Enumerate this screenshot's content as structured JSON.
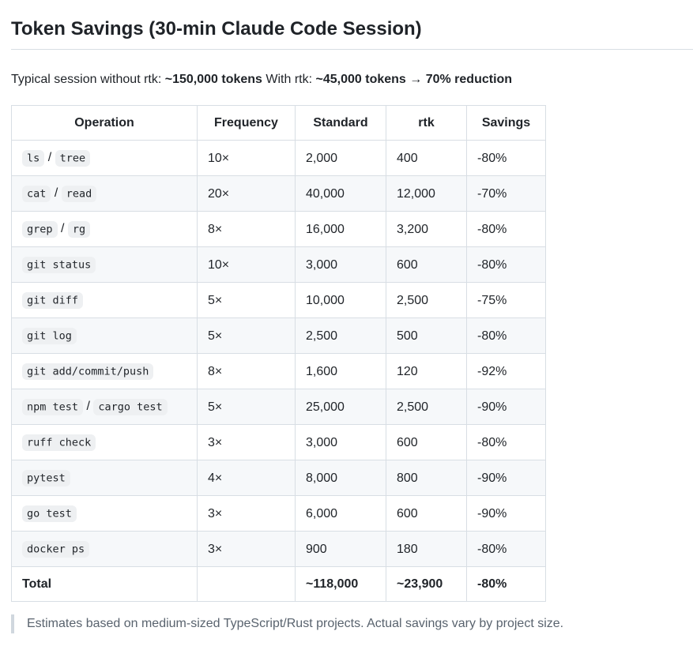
{
  "page": {
    "title": "Token Savings (30-min Claude Code Session)",
    "summary": {
      "prefix": "Typical session without rtk: ",
      "without_value": "~150,000 tokens",
      "middle": " With rtk: ",
      "with_value": "~45,000 tokens",
      "arrow": " → ",
      "reduction": "70% reduction"
    },
    "table": {
      "headers": [
        "Operation",
        "Frequency",
        "Standard",
        "rtk",
        "Savings"
      ],
      "rows": [
        {
          "op": [
            {
              "code": "ls"
            },
            {
              "text": " / "
            },
            {
              "code": "tree"
            }
          ],
          "frequency": "10×",
          "standard": "2,000",
          "rtk": "400",
          "savings": "-80%"
        },
        {
          "op": [
            {
              "code": "cat"
            },
            {
              "text": " / "
            },
            {
              "code": "read"
            }
          ],
          "frequency": "20×",
          "standard": "40,000",
          "rtk": "12,000",
          "savings": "-70%"
        },
        {
          "op": [
            {
              "code": "grep"
            },
            {
              "text": " / "
            },
            {
              "code": "rg"
            }
          ],
          "frequency": "8×",
          "standard": "16,000",
          "rtk": "3,200",
          "savings": "-80%"
        },
        {
          "op": [
            {
              "code": "git status"
            }
          ],
          "frequency": "10×",
          "standard": "3,000",
          "rtk": "600",
          "savings": "-80%"
        },
        {
          "op": [
            {
              "code": "git diff"
            }
          ],
          "frequency": "5×",
          "standard": "10,000",
          "rtk": "2,500",
          "savings": "-75%"
        },
        {
          "op": [
            {
              "code": "git log"
            }
          ],
          "frequency": "5×",
          "standard": "2,500",
          "rtk": "500",
          "savings": "-80%"
        },
        {
          "op": [
            {
              "code": "git add/commit/push"
            }
          ],
          "frequency": "8×",
          "standard": "1,600",
          "rtk": "120",
          "savings": "-92%"
        },
        {
          "op": [
            {
              "code": "npm test"
            },
            {
              "text": " / "
            },
            {
              "code": "cargo test"
            }
          ],
          "frequency": "5×",
          "standard": "25,000",
          "rtk": "2,500",
          "savings": "-90%"
        },
        {
          "op": [
            {
              "code": "ruff check"
            }
          ],
          "frequency": "3×",
          "standard": "3,000",
          "rtk": "600",
          "savings": "-80%"
        },
        {
          "op": [
            {
              "code": "pytest"
            }
          ],
          "frequency": "4×",
          "standard": "8,000",
          "rtk": "800",
          "savings": "-90%"
        },
        {
          "op": [
            {
              "code": "go test"
            }
          ],
          "frequency": "3×",
          "standard": "6,000",
          "rtk": "600",
          "savings": "-90%"
        },
        {
          "op": [
            {
              "code": "docker ps"
            }
          ],
          "frequency": "3×",
          "standard": "900",
          "rtk": "180",
          "savings": "-80%"
        }
      ],
      "total": {
        "label": "Total",
        "frequency": "",
        "standard": "~118,000",
        "rtk": "~23,900",
        "savings": "-80%"
      }
    },
    "footnote": "Estimates based on medium-sized TypeScript/Rust projects. Actual savings vary by project size.",
    "colors": {
      "text": "#1f2328",
      "muted_text": "#59636e",
      "table_border": "#d8dee4",
      "alt_row_bg": "#f6f8fa",
      "code_bg": "#eef0f2",
      "quote_bar": "#d0d7de"
    }
  }
}
